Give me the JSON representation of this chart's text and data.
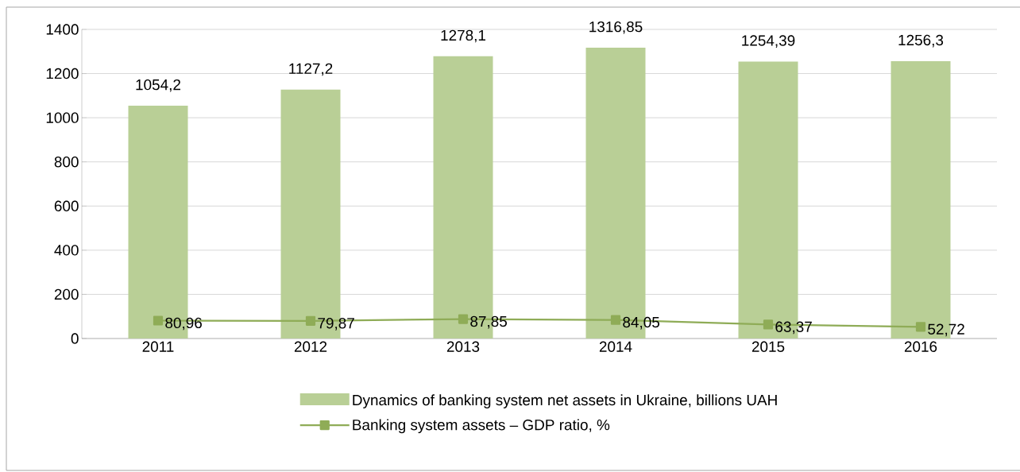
{
  "chart_data": {
    "type": "bar",
    "categories": [
      "2011",
      "2012",
      "2013",
      "2014",
      "2015",
      "2016"
    ],
    "series": [
      {
        "name": "Dynamics of banking system net assets in Ukraine, billions UAH",
        "type": "bar",
        "color": "#b9cf96",
        "values": [
          1054.2,
          1127.2,
          1278.1,
          1316.85,
          1254.39,
          1256.3
        ],
        "value_labels": [
          "1054,2",
          "1127,2",
          "1278,1",
          "1316,85",
          "1254,39",
          "1256,3"
        ]
      },
      {
        "name": "Banking system assets – GDP ratio, %",
        "type": "line",
        "color": "#8fac57",
        "marker": "square",
        "values": [
          80.96,
          79.87,
          87.85,
          84.05,
          63.37,
          52.72
        ],
        "value_labels": [
          "80,96",
          "79,87",
          "87,85",
          "84,05",
          "63,37",
          "52,72"
        ]
      }
    ],
    "ylim": [
      0,
      1400
    ],
    "yticks": [
      0,
      200,
      400,
      600,
      800,
      1000,
      1200,
      1400
    ],
    "grid": "y",
    "legend": "bottom"
  }
}
